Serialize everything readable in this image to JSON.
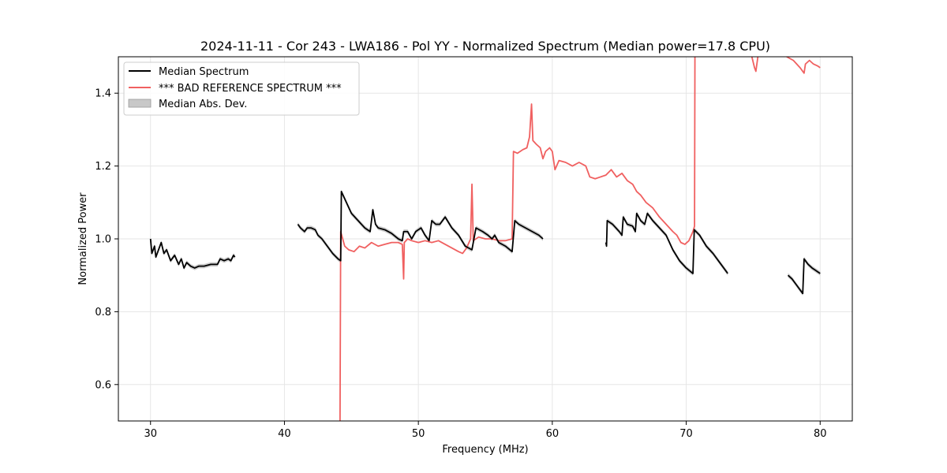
{
  "chart_data": {
    "type": "line",
    "title": "2024-11-11 - Cor 243 - LWA186 - Pol YY - Normalized Spectrum (Median power=17.8 CPU)",
    "xlabel": "Frequency (MHz)",
    "ylabel": "Normalized Power",
    "xlim": [
      27.6,
      82.4
    ],
    "ylim": [
      0.5,
      1.5
    ],
    "xticks": [
      30,
      40,
      50,
      60,
      70,
      80
    ],
    "yticks": [
      0.6,
      0.8,
      1.0,
      1.2,
      1.4
    ],
    "xtick_labels": [
      "30",
      "40",
      "50",
      "60",
      "70",
      "80"
    ],
    "ytick_labels": [
      "0.6",
      "0.8",
      "1.0",
      "1.2",
      "1.4"
    ],
    "grid": true,
    "legend_position": "top-left",
    "legend": [
      "Median Spectrum",
      "*** BAD REFERENCE SPECTRUM ***",
      "Median Abs. Dev."
    ],
    "colors": {
      "median": "#000000",
      "bad_ref": "#f06060",
      "mad_fill": "#c8c8c8"
    },
    "series": [
      {
        "name": "Median Spectrum",
        "segments": [
          [
            [
              30.0,
              1.0
            ],
            [
              30.1,
              0.96
            ],
            [
              30.3,
              0.98
            ],
            [
              30.4,
              0.95
            ],
            [
              30.6,
              0.97
            ],
            [
              30.8,
              0.99
            ],
            [
              31.0,
              0.96
            ],
            [
              31.2,
              0.97
            ],
            [
              31.5,
              0.94
            ],
            [
              31.8,
              0.955
            ],
            [
              32.1,
              0.93
            ],
            [
              32.3,
              0.945
            ],
            [
              32.5,
              0.92
            ],
            [
              32.7,
              0.935
            ],
            [
              33.0,
              0.925
            ],
            [
              33.3,
              0.92
            ],
            [
              33.6,
              0.925
            ],
            [
              34.0,
              0.925
            ],
            [
              34.5,
              0.93
            ],
            [
              35.0,
              0.93
            ],
            [
              35.2,
              0.945
            ],
            [
              35.5,
              0.94
            ],
            [
              35.8,
              0.945
            ],
            [
              36.0,
              0.94
            ],
            [
              36.2,
              0.955
            ],
            [
              36.3,
              0.95
            ]
          ],
          [
            [
              41.0,
              1.04
            ],
            [
              41.2,
              1.03
            ],
            [
              41.5,
              1.02
            ],
            [
              41.7,
              1.03
            ],
            [
              42.0,
              1.03
            ],
            [
              42.3,
              1.025
            ],
            [
              42.5,
              1.01
            ],
            [
              42.8,
              1.0
            ],
            [
              43.2,
              0.98
            ],
            [
              43.6,
              0.96
            ],
            [
              44.0,
              0.945
            ],
            [
              44.2,
              0.94
            ],
            [
              44.25,
              1.13
            ],
            [
              44.5,
              1.11
            ],
            [
              45.0,
              1.07
            ],
            [
              45.5,
              1.05
            ],
            [
              46.0,
              1.03
            ],
            [
              46.4,
              1.02
            ],
            [
              46.6,
              1.08
            ],
            [
              46.8,
              1.04
            ],
            [
              47.0,
              1.03
            ],
            [
              47.5,
              1.025
            ],
            [
              48.0,
              1.015
            ],
            [
              48.5,
              1.0
            ],
            [
              48.8,
              0.995
            ],
            [
              48.9,
              1.02
            ],
            [
              49.2,
              1.02
            ],
            [
              49.5,
              1.0
            ],
            [
              49.8,
              1.02
            ],
            [
              50.2,
              1.03
            ],
            [
              50.5,
              1.01
            ],
            [
              50.8,
              0.995
            ],
            [
              51.0,
              1.05
            ],
            [
              51.3,
              1.04
            ],
            [
              51.6,
              1.04
            ],
            [
              52.0,
              1.06
            ],
            [
              52.5,
              1.03
            ],
            [
              53.0,
              1.01
            ],
            [
              53.5,
              0.98
            ],
            [
              54.0,
              0.97
            ],
            [
              54.3,
              1.03
            ],
            [
              54.8,
              1.02
            ],
            [
              55.2,
              1.01
            ],
            [
              55.5,
              1.0
            ],
            [
              55.7,
              1.01
            ],
            [
              56.0,
              0.99
            ],
            [
              56.5,
              0.98
            ],
            [
              57.0,
              0.965
            ],
            [
              57.2,
              1.05
            ],
            [
              57.5,
              1.04
            ],
            [
              58.0,
              1.03
            ],
            [
              58.5,
              1.02
            ],
            [
              59.0,
              1.01
            ],
            [
              59.3,
              1.0
            ]
          ],
          [
            [
              64.0,
              0.99
            ],
            [
              64.05,
              0.98
            ],
            [
              64.1,
              1.05
            ],
            [
              64.5,
              1.04
            ],
            [
              65.0,
              1.02
            ],
            [
              65.2,
              1.01
            ],
            [
              65.3,
              1.06
            ],
            [
              65.6,
              1.04
            ],
            [
              66.0,
              1.035
            ],
            [
              66.2,
              1.02
            ],
            [
              66.3,
              1.07
            ],
            [
              66.6,
              1.05
            ],
            [
              66.9,
              1.04
            ],
            [
              67.1,
              1.07
            ],
            [
              67.5,
              1.05
            ],
            [
              68.0,
              1.03
            ],
            [
              68.5,
              1.01
            ],
            [
              69.0,
              0.97
            ],
            [
              69.5,
              0.94
            ],
            [
              70.0,
              0.92
            ],
            [
              70.5,
              0.905
            ],
            [
              70.6,
              1.025
            ],
            [
              71.0,
              1.01
            ],
            [
              71.5,
              0.98
            ],
            [
              72.0,
              0.96
            ],
            [
              72.5,
              0.935
            ],
            [
              73.0,
              0.91
            ],
            [
              73.1,
              0.905
            ]
          ],
          [
            [
              77.6,
              0.9
            ],
            [
              77.9,
              0.89
            ],
            [
              78.2,
              0.875
            ],
            [
              78.5,
              0.86
            ],
            [
              78.7,
              0.85
            ],
            [
              78.8,
              0.945
            ],
            [
              79.1,
              0.93
            ],
            [
              79.4,
              0.92
            ],
            [
              79.6,
              0.915
            ],
            [
              79.8,
              0.91
            ],
            [
              80.0,
              0.905
            ]
          ]
        ]
      },
      {
        "name": "*** BAD REFERENCE SPECTRUM ***",
        "segments": [
          [
            [
              44.15,
              0.5
            ],
            [
              44.2,
              1.02
            ],
            [
              44.5,
              0.98
            ],
            [
              44.8,
              0.97
            ],
            [
              45.2,
              0.965
            ],
            [
              45.6,
              0.98
            ],
            [
              46.0,
              0.975
            ],
            [
              46.5,
              0.99
            ],
            [
              47.0,
              0.98
            ],
            [
              47.5,
              0.985
            ],
            [
              48.0,
              0.99
            ],
            [
              48.5,
              0.99
            ],
            [
              48.8,
              0.985
            ],
            [
              48.9,
              0.89
            ],
            [
              48.95,
              0.99
            ],
            [
              49.2,
              1.0
            ],
            [
              49.5,
              0.995
            ],
            [
              50.0,
              0.99
            ],
            [
              50.5,
              0.995
            ],
            [
              51.0,
              0.99
            ],
            [
              51.5,
              0.995
            ],
            [
              52.0,
              0.985
            ],
            [
              52.5,
              0.975
            ],
            [
              53.0,
              0.965
            ],
            [
              53.3,
              0.96
            ],
            [
              53.6,
              0.975
            ],
            [
              53.9,
              1.0
            ],
            [
              54.0,
              1.15
            ],
            [
              54.1,
              0.995
            ],
            [
              54.5,
              1.005
            ],
            [
              55.0,
              1.0
            ],
            [
              55.5,
              1.0
            ],
            [
              56.0,
              0.995
            ],
            [
              56.5,
              0.995
            ],
            [
              57.0,
              1.0
            ],
            [
              57.1,
              1.24
            ],
            [
              57.4,
              1.235
            ],
            [
              57.8,
              1.245
            ],
            [
              58.1,
              1.25
            ],
            [
              58.3,
              1.28
            ],
            [
              58.45,
              1.37
            ],
            [
              58.55,
              1.27
            ],
            [
              58.8,
              1.26
            ],
            [
              59.1,
              1.25
            ],
            [
              59.3,
              1.22
            ],
            [
              59.5,
              1.24
            ],
            [
              59.8,
              1.25
            ],
            [
              60.0,
              1.24
            ],
            [
              60.2,
              1.19
            ],
            [
              60.5,
              1.215
            ],
            [
              61.0,
              1.21
            ],
            [
              61.5,
              1.2
            ],
            [
              62.0,
              1.21
            ],
            [
              62.5,
              1.2
            ],
            [
              62.8,
              1.17
            ],
            [
              63.2,
              1.165
            ],
            [
              63.6,
              1.17
            ],
            [
              64.0,
              1.175
            ],
            [
              64.4,
              1.19
            ],
            [
              64.8,
              1.17
            ],
            [
              65.2,
              1.18
            ],
            [
              65.6,
              1.16
            ],
            [
              66.0,
              1.15
            ],
            [
              66.3,
              1.13
            ],
            [
              66.6,
              1.12
            ],
            [
              67.0,
              1.1
            ],
            [
              67.5,
              1.085
            ],
            [
              68.0,
              1.06
            ],
            [
              68.5,
              1.04
            ],
            [
              69.0,
              1.02
            ],
            [
              69.3,
              1.01
            ],
            [
              69.6,
              0.99
            ],
            [
              69.9,
              0.985
            ],
            [
              70.2,
              0.995
            ],
            [
              70.5,
              1.02
            ],
            [
              70.62,
              1.035
            ],
            [
              70.65,
              1.5
            ]
          ],
          [
            [
              74.9,
              1.5
            ],
            [
              75.1,
              1.47
            ],
            [
              75.2,
              1.46
            ],
            [
              75.35,
              1.5
            ]
          ],
          [
            [
              77.5,
              1.5
            ],
            [
              78.0,
              1.49
            ],
            [
              78.5,
              1.47
            ],
            [
              78.8,
              1.455
            ],
            [
              78.9,
              1.48
            ],
            [
              79.2,
              1.49
            ],
            [
              79.5,
              1.48
            ],
            [
              79.8,
              1.475
            ],
            [
              80.0,
              1.47
            ]
          ]
        ]
      },
      {
        "name": "Median Abs. Dev.",
        "band_halfwidth": 0.006
      }
    ]
  }
}
